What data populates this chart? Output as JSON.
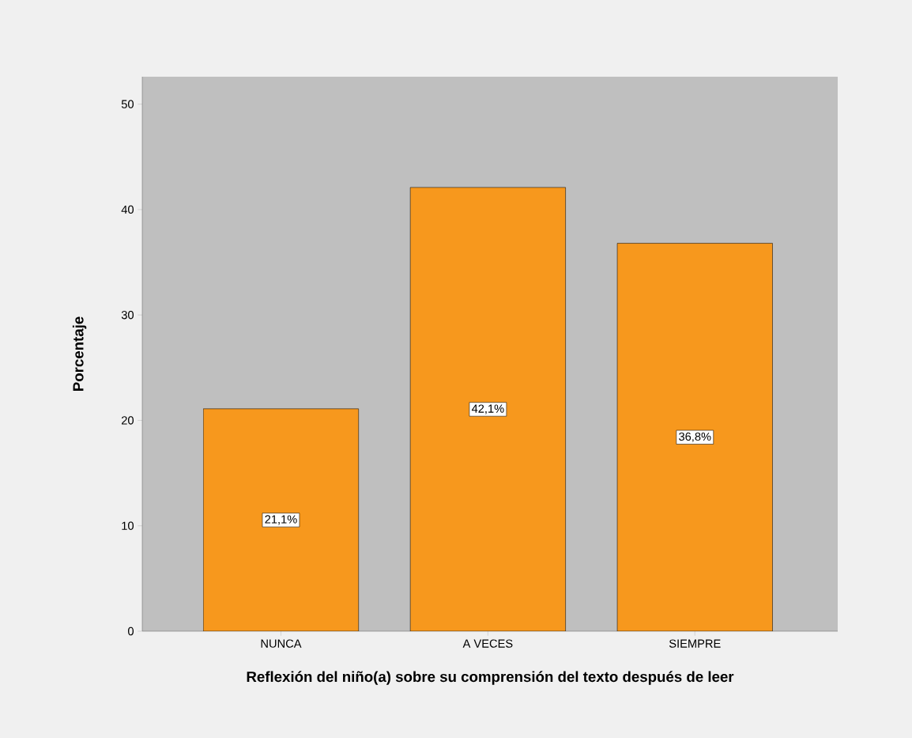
{
  "chart_data": {
    "type": "bar",
    "xlabel": "Reflexión del niño(a) sobre su comprensión del texto después de leer",
    "ylabel": "Porcentaje",
    "categories": [
      "NUNCA",
      "A VECES",
      "SIEMPRE"
    ],
    "values": [
      21.1,
      42.1,
      36.8
    ],
    "value_labels": [
      "21,1%",
      "42,1%",
      "36,8%"
    ],
    "color": "#f7981d",
    "ylim": [
      0,
      52.6
    ],
    "yticks": [
      0,
      10,
      20,
      30,
      40,
      50
    ],
    "grid": false
  }
}
